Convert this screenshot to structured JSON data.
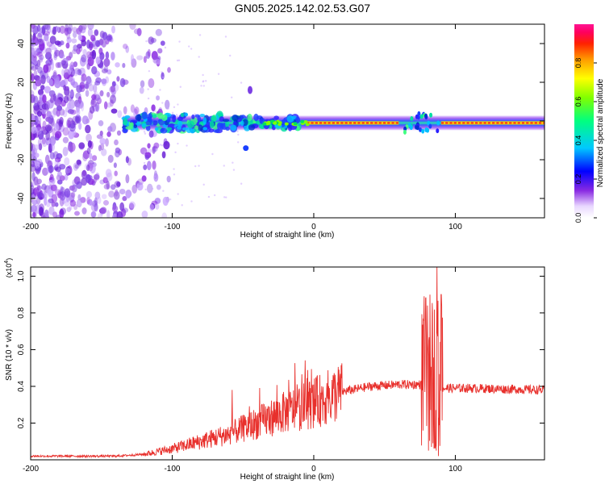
{
  "title": "GN05.2025.142.02.53.G07",
  "colors": {
    "snr_line": "#e8302c",
    "spectrogram_faint": "#9b5de5",
    "spectrogram_core": "#2244ff"
  },
  "chart_data": [
    {
      "type": "heatmap",
      "xlabel": "Height of straight line (km)",
      "ylabel": "Frequency (Hz)",
      "xlim": [
        -200,
        163
      ],
      "ylim": [
        -50,
        50
      ],
      "xticks": [
        -200,
        -100,
        0,
        100
      ],
      "yticks": [
        -40,
        -20,
        0,
        20,
        40
      ],
      "colorbar": {
        "label": "Normalized spectral amplitude",
        "range": [
          0,
          1
        ],
        "ticks": [
          "0.0",
          "0.2",
          "0.4",
          "0.6",
          "0.8"
        ],
        "colormap": "rainbow (white → purple → blue → cyan → green → yellow → red)"
      },
      "features": {
        "noise_region_x": [
          -200,
          -120
        ],
        "main_band_frequency_hz": -1,
        "strong_segments_x": [
          [
            -5,
            60
          ],
          [
            90,
            163
          ]
        ]
      }
    },
    {
      "type": "line",
      "xlabel": "Height of straight line (km)",
      "ylabel": "SNR (10 * v/v)",
      "y_multiplier": "(x10^4)",
      "xlim": [
        -200,
        163
      ],
      "ylim": [
        0,
        1.05
      ],
      "xticks": [
        -200,
        -100,
        0,
        100
      ],
      "yticks": [
        0.2,
        0.4,
        0.6,
        0.8,
        1.0
      ],
      "series": [
        {
          "trend_points": [
            [
              -200,
              0.02
            ],
            [
              -140,
              0.02
            ],
            [
              -120,
              0.03
            ],
            [
              -100,
              0.06
            ],
            [
              -80,
              0.1
            ],
            [
              -60,
              0.14
            ],
            [
              -40,
              0.2
            ],
            [
              -20,
              0.26
            ],
            [
              0,
              0.31
            ],
            [
              20,
              0.37
            ],
            [
              40,
              0.4
            ],
            [
              60,
              0.41
            ],
            [
              75,
              0.41
            ],
            [
              90,
              0.39
            ],
            [
              110,
              0.39
            ],
            [
              163,
              0.38
            ]
          ],
          "spikes": [
            [
              79,
              0.88
            ],
            [
              81,
              0.05
            ],
            [
              84,
              0.8
            ],
            [
              86,
              0.08
            ],
            [
              87,
              1.05
            ],
            [
              88,
              0.02
            ],
            [
              90,
              0.9
            ]
          ]
        }
      ]
    }
  ],
  "axis_text": {
    "top_xlabel": "Height of straight line (km)",
    "top_ylabel": "Frequency (Hz)",
    "bottom_xlabel": "Height of straight line (km)",
    "bottom_ylabel": "SNR (10 * v/v)",
    "bottom_multiplier_base": "(x10",
    "bottom_multiplier_exp": "4",
    "bottom_multiplier_close": ")",
    "colorbar_label": "Normalized spectral amplitude"
  }
}
